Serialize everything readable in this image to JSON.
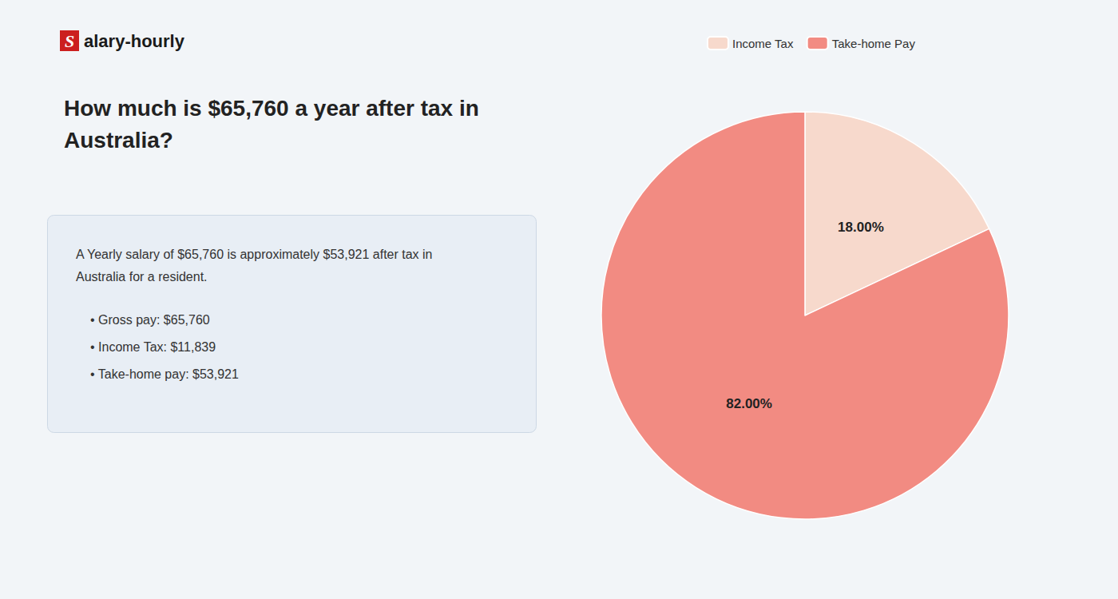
{
  "chart_data": {
    "type": "pie",
    "title": "How much is $65,760 a year after tax in\nAustralia?",
    "categories": [
      "Income Tax",
      "Take-home Pay"
    ],
    "values": [
      18.0,
      82.0
    ],
    "value_labels": [
      "18.00%",
      "82.00%"
    ],
    "colors": [
      "#f7d9cc",
      "#f28b82"
    ],
    "data_labels": true,
    "legend": "top",
    "annotations": [
      "Salary-hourly",
      "A Yearly salary of $65,760 is approximately $53,921 after tax in",
      "Australia for a resident.",
      "• Gross pay: $65,760",
      "• Income Tax: $11,839",
      "• Take-home pay: $53,921"
    ]
  }
}
